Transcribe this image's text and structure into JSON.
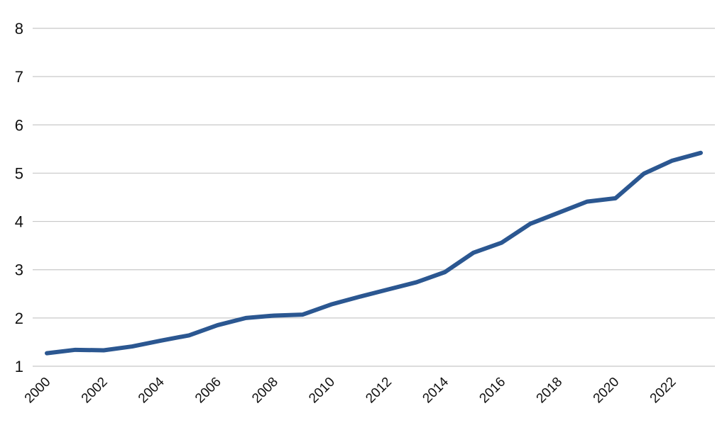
{
  "chart_data": {
    "type": "line",
    "title": "",
    "xlabel": "",
    "ylabel": "",
    "x": [
      2000,
      2001,
      2002,
      2003,
      2004,
      2005,
      2006,
      2007,
      2008,
      2009,
      2010,
      2011,
      2012,
      2013,
      2014,
      2015,
      2016,
      2017,
      2018,
      2019,
      2020,
      2021,
      2022,
      2023
    ],
    "series": [
      {
        "values": [
          1.27,
          1.34,
          1.33,
          1.41,
          1.53,
          1.64,
          1.85,
          2.0,
          2.05,
          2.07,
          2.28,
          2.44,
          2.59,
          2.74,
          2.95,
          3.35,
          3.56,
          3.95,
          4.18,
          4.41,
          4.48,
          4.99,
          5.26,
          5.42
        ],
        "color": "#2b5791"
      }
    ],
    "xlim": [
      2000,
      2023
    ],
    "ylim": [
      1,
      8
    ],
    "yticks": [
      "1",
      "2",
      "3",
      "4",
      "5",
      "6",
      "7",
      "8"
    ],
    "xticks": [
      "2000",
      "2002",
      "2004",
      "2006",
      "2008",
      "2010",
      "2012",
      "2014",
      "2016",
      "2018",
      "2020",
      "2022"
    ],
    "grid": true,
    "gridline_color": "#c8c8c8",
    "legend": "none"
  }
}
